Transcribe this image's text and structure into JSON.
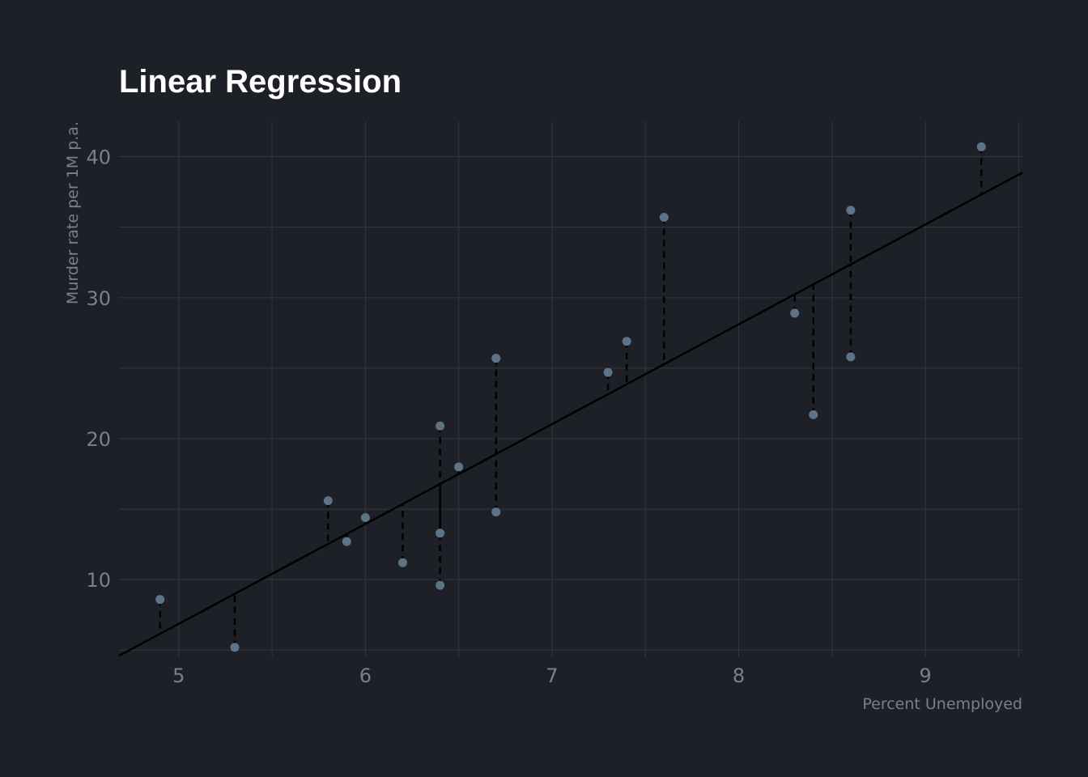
{
  "chart_data": {
    "type": "scatter",
    "title": "Linear Regression",
    "xlabel": "Percent Unemployed",
    "ylabel": "Murder rate per 1M p.a.",
    "xlim": [
      4.68,
      9.52
    ],
    "ylim": [
      4.5,
      42.5
    ],
    "x_ticks": [
      5,
      6,
      7,
      8,
      9
    ],
    "y_ticks": [
      10,
      20,
      30,
      40
    ],
    "grid": true,
    "regression_line": {
      "intercept": -28.53,
      "slope": 7.08
    },
    "residuals": "dashed",
    "points": [
      {
        "x": 4.9,
        "y": 8.6
      },
      {
        "x": 5.3,
        "y": 5.2
      },
      {
        "x": 5.8,
        "y": 15.6
      },
      {
        "x": 5.9,
        "y": 12.7
      },
      {
        "x": 6.0,
        "y": 14.4
      },
      {
        "x": 6.2,
        "y": 11.2
      },
      {
        "x": 6.4,
        "y": 20.9
      },
      {
        "x": 6.4,
        "y": 13.3
      },
      {
        "x": 6.4,
        "y": 9.6
      },
      {
        "x": 6.5,
        "y": 18.0
      },
      {
        "x": 6.7,
        "y": 25.7
      },
      {
        "x": 6.7,
        "y": 14.8
      },
      {
        "x": 7.3,
        "y": 24.7
      },
      {
        "x": 7.4,
        "y": 26.9
      },
      {
        "x": 7.6,
        "y": 35.7
      },
      {
        "x": 8.3,
        "y": 28.9
      },
      {
        "x": 8.4,
        "y": 21.7
      },
      {
        "x": 8.6,
        "y": 36.2
      },
      {
        "x": 8.6,
        "y": 25.8
      },
      {
        "x": 9.3,
        "y": 40.7
      }
    ],
    "colors": {
      "background": "#1e2027",
      "point": "#5f7386",
      "line": "#000000",
      "grid": "#33363e",
      "text": "#7c7f87",
      "title": "#ffffff"
    }
  }
}
